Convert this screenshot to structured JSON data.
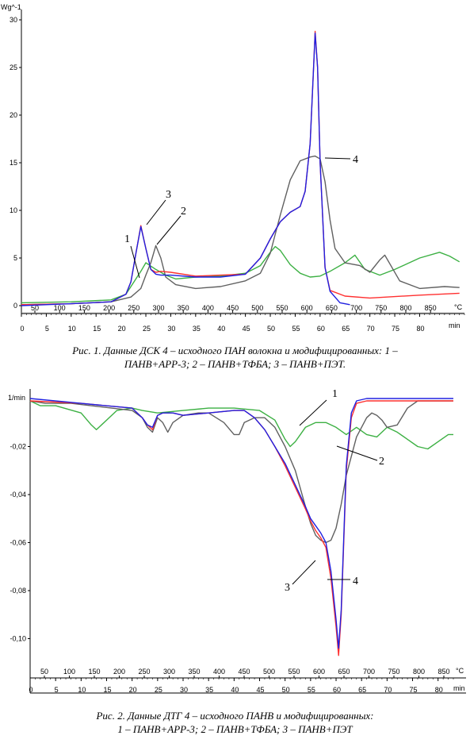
{
  "figure1": {
    "ylabel": "Wg^-1",
    "yticks": [
      "30",
      "25",
      "20",
      "15",
      "10",
      "5",
      "0"
    ],
    "temp_ticks": [
      "50",
      "100",
      "150",
      "200",
      "250",
      "300",
      "350",
      "400",
      "450",
      "500",
      "550",
      "600",
      "650",
      "700",
      "750",
      "800",
      "850"
    ],
    "temp_unit": "°C",
    "time_ticks": [
      "0",
      "5",
      "10",
      "15",
      "20",
      "25",
      "30",
      "35",
      "40",
      "45",
      "50",
      "55",
      "60",
      "65",
      "70",
      "75",
      "80"
    ],
    "time_unit": "min",
    "annotations": [
      "1",
      "2",
      "3",
      "4"
    ],
    "caption_line1": "Рис. 1. Данные ДСК 4 – исходного ПАН волокна и модифицированных:       1 –",
    "caption_line2": "ПАНВ+АРР-3; 2 – ПАНВ+ТФБА; 3 – ПАНВ+ПЭТ."
  },
  "figure2": {
    "ylabel": "1/min",
    "yticks": [
      "-0,02",
      "-0,04",
      "-0,06",
      "-0,08",
      "-0,10"
    ],
    "temp_ticks": [
      "50",
      "100",
      "150",
      "200",
      "250",
      "300",
      "350",
      "400",
      "450",
      "500",
      "550",
      "600",
      "650",
      "700",
      "750",
      "800",
      "850"
    ],
    "temp_unit": "°C",
    "time_ticks": [
      "0",
      "5",
      "10",
      "15",
      "20",
      "25",
      "30",
      "35",
      "40",
      "45",
      "50",
      "55",
      "60",
      "65",
      "70",
      "75",
      "80"
    ],
    "time_unit": "min",
    "annotations": [
      "1",
      "2",
      "3",
      "4"
    ],
    "caption_line1": "Рис. 2. Данные ДТГ 4 – исходного ПАНВ и модифицированных:",
    "caption_line2": "1 – ПАНВ+АРР-3; 2 – ПАНВ+ТФБА; 3 – ПАНВ+ПЭТ"
  },
  "chart_data": [
    {
      "type": "line",
      "x_unit": "min",
      "ylabel": "Wg^-1",
      "ylim": [
        -1,
        30
      ],
      "xlim": [
        0,
        89
      ],
      "series": [
        {
          "name": "1",
          "color": "#3cb043",
          "x": [
            0,
            10,
            18,
            21,
            24,
            25,
            27,
            29,
            31,
            35,
            40,
            45,
            48,
            50,
            51,
            52,
            54,
            56,
            58,
            60,
            62,
            65,
            67,
            69,
            72,
            75,
            80,
            84,
            86,
            88
          ],
          "y": [
            0.3,
            0.4,
            0.6,
            1.2,
            3.6,
            4.5,
            3.8,
            3.2,
            2.8,
            3.0,
            3.1,
            3.4,
            4.2,
            5.6,
            6.2,
            5.8,
            4.3,
            3.4,
            3.0,
            3.1,
            3.6,
            4.5,
            5.3,
            3.8,
            3.2,
            3.8,
            5.0,
            5.6,
            5.2,
            4.6
          ]
        },
        {
          "name": "2",
          "color": "#606060",
          "x": [
            0,
            10,
            18,
            22,
            24,
            25,
            26,
            27,
            28,
            29,
            31,
            35,
            40,
            45,
            48,
            50,
            52,
            54,
            56,
            58,
            59,
            60,
            61,
            62,
            63,
            65,
            68,
            70,
            72,
            73,
            74,
            76,
            80,
            85,
            88
          ],
          "y": [
            0.1,
            0.2,
            0.4,
            0.9,
            1.8,
            3.2,
            4.5,
            6.3,
            5.0,
            3.0,
            2.2,
            1.8,
            2.0,
            2.6,
            3.4,
            5.5,
            9.5,
            13.2,
            15.2,
            15.6,
            15.7,
            15.4,
            13.0,
            9.0,
            6.0,
            4.5,
            4.2,
            3.5,
            4.8,
            5.3,
            4.4,
            2.6,
            1.8,
            2.0,
            1.9
          ]
        },
        {
          "name": "3",
          "color": "#ff3030",
          "x": [
            0,
            10,
            18,
            21,
            22,
            23,
            24,
            25,
            26,
            27,
            28,
            30,
            35,
            40,
            45,
            48,
            50,
            52,
            54,
            56,
            57,
            58,
            58.6,
            59,
            59.5,
            60,
            61,
            62,
            65,
            70,
            80,
            88
          ],
          "y": [
            0.1,
            0.2,
            0.4,
            1.2,
            2.5,
            5.5,
            8.4,
            6.0,
            3.8,
            3.5,
            3.6,
            3.5,
            3.1,
            3.2,
            3.3,
            5.0,
            7.0,
            8.8,
            9.8,
            10.4,
            12.0,
            17.0,
            24.0,
            28.8,
            25.0,
            15.0,
            4.0,
            1.6,
            1.0,
            0.8,
            1.1,
            1.3
          ]
        },
        {
          "name": "4",
          "color": "#2020e0",
          "x": [
            0,
            10,
            18,
            21,
            22,
            23,
            24,
            25,
            26,
            27,
            28,
            30,
            35,
            40,
            45,
            48,
            50,
            52,
            54,
            56,
            57,
            58,
            58.6,
            59,
            59.5,
            60,
            61,
            62,
            64,
            66
          ],
          "y": [
            0.0,
            0.2,
            0.4,
            1.2,
            2.5,
            5.5,
            8.3,
            6.0,
            3.8,
            3.3,
            3.2,
            3.2,
            3.0,
            3.0,
            3.3,
            5.0,
            7.0,
            8.8,
            9.8,
            10.4,
            12.0,
            17.0,
            24.0,
            28.6,
            25.0,
            15.0,
            4.0,
            1.5,
            0.3,
            0.1
          ]
        }
      ]
    },
    {
      "type": "line",
      "x_unit": "min",
      "ylabel": "1/min",
      "ylim": [
        -0.12,
        0.0
      ],
      "xlim": [
        0,
        83
      ],
      "series": [
        {
          "name": "1",
          "color": "#3cb043",
          "x": [
            0,
            2,
            5,
            10,
            12,
            13,
            15,
            17,
            20,
            22,
            25,
            30,
            35,
            40,
            45,
            48,
            50,
            51,
            52,
            54,
            56,
            58,
            60,
            62,
            64,
            66,
            68,
            70,
            72,
            74,
            76,
            78,
            80,
            82,
            83
          ],
          "y": [
            -0.001,
            -0.003,
            -0.003,
            -0.006,
            -0.011,
            -0.013,
            -0.009,
            -0.005,
            -0.004,
            -0.005,
            -0.006,
            -0.005,
            -0.004,
            -0.004,
            -0.005,
            -0.009,
            -0.017,
            -0.02,
            -0.018,
            -0.012,
            -0.01,
            -0.01,
            -0.012,
            -0.015,
            -0.012,
            -0.015,
            -0.016,
            -0.012,
            -0.014,
            -0.017,
            -0.02,
            -0.021,
            -0.018,
            -0.015,
            -0.015
          ]
        },
        {
          "name": "2",
          "color": "#606060",
          "x": [
            0,
            3,
            8,
            12,
            16,
            20,
            22,
            23,
            24,
            25,
            26,
            27,
            28,
            30,
            33,
            35,
            38,
            40,
            41,
            42,
            44,
            46,
            48,
            50,
            52,
            54,
            55,
            56,
            57,
            58,
            59,
            60,
            61,
            62,
            64,
            66,
            67,
            68,
            69,
            70,
            72,
            74,
            76,
            80,
            83
          ],
          "y": [
            -0.001,
            -0.002,
            -0.002,
            -0.003,
            -0.004,
            -0.005,
            -0.008,
            -0.012,
            -0.014,
            -0.008,
            -0.01,
            -0.014,
            -0.01,
            -0.007,
            -0.006,
            -0.006,
            -0.01,
            -0.015,
            -0.015,
            -0.01,
            -0.008,
            -0.008,
            -0.012,
            -0.02,
            -0.03,
            -0.045,
            -0.052,
            -0.057,
            -0.059,
            -0.06,
            -0.059,
            -0.054,
            -0.044,
            -0.032,
            -0.016,
            -0.008,
            -0.006,
            -0.007,
            -0.009,
            -0.012,
            -0.011,
            -0.004,
            -0.001,
            -0.001,
            -0.001
          ]
        },
        {
          "name": "3",
          "color": "#ff3030",
          "x": [
            0,
            10,
            20,
            22,
            23,
            24,
            25,
            26,
            28,
            30,
            35,
            40,
            42,
            44,
            46,
            48,
            50,
            52,
            54,
            55,
            56,
            57,
            58,
            59,
            60,
            60.5,
            61,
            61.5,
            62,
            63,
            64,
            66,
            70,
            83
          ],
          "y": [
            -0.001,
            -0.002,
            -0.004,
            -0.008,
            -0.011,
            -0.013,
            -0.007,
            -0.006,
            -0.006,
            -0.007,
            -0.006,
            -0.005,
            -0.005,
            -0.008,
            -0.013,
            -0.02,
            -0.028,
            -0.037,
            -0.046,
            -0.051,
            -0.055,
            -0.058,
            -0.062,
            -0.075,
            -0.095,
            -0.107,
            -0.09,
            -0.06,
            -0.03,
            -0.008,
            -0.002,
            -0.001,
            -0.001,
            -0.001
          ]
        },
        {
          "name": "4",
          "color": "#2020e0",
          "x": [
            0,
            10,
            20,
            22,
            23,
            24,
            25,
            26,
            28,
            30,
            35,
            40,
            42,
            44,
            46,
            48,
            50,
            52,
            54,
            55,
            56,
            57,
            58,
            59,
            60,
            60.5,
            61,
            61.5,
            62,
            63,
            64,
            66,
            70,
            83
          ],
          "y": [
            0.0,
            -0.002,
            -0.004,
            -0.008,
            -0.011,
            -0.012,
            -0.007,
            -0.006,
            -0.006,
            -0.007,
            -0.006,
            -0.005,
            -0.005,
            -0.008,
            -0.013,
            -0.02,
            -0.027,
            -0.036,
            -0.045,
            -0.05,
            -0.053,
            -0.056,
            -0.06,
            -0.072,
            -0.092,
            -0.104,
            -0.088,
            -0.058,
            -0.028,
            -0.006,
            -0.001,
            0.0,
            0.0,
            0.0
          ]
        }
      ]
    }
  ]
}
